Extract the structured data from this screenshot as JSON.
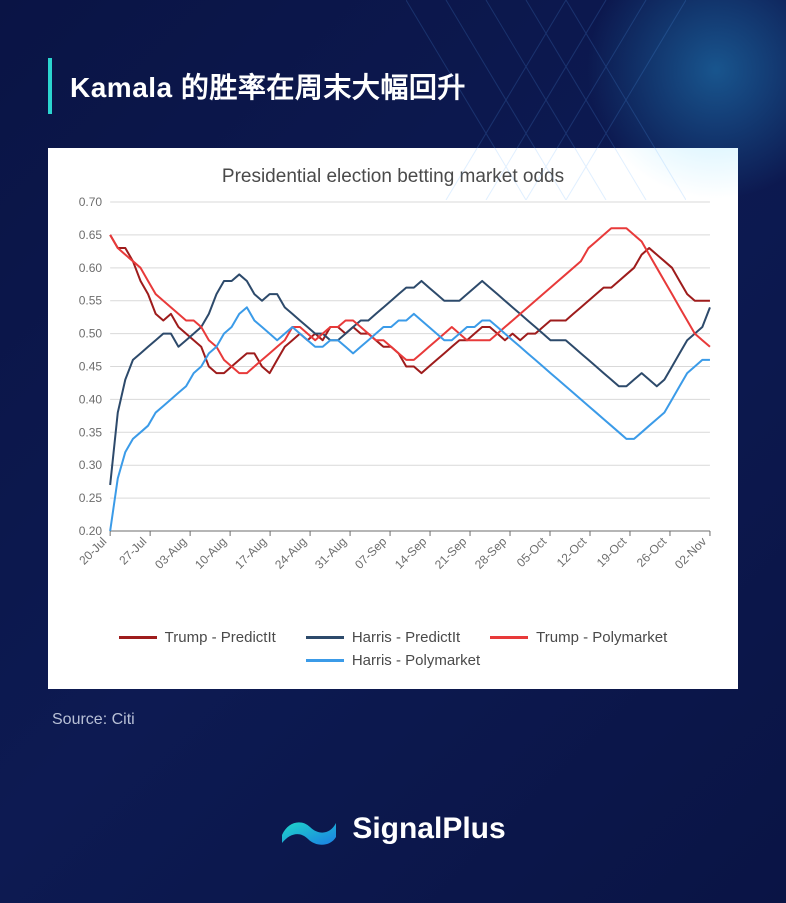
{
  "header": {
    "title": "Kamala 的胜率在周末大幅回升"
  },
  "source_label": "Source: Citi",
  "brand": {
    "name": "SignalPlus",
    "logo_gradient": [
      "#1fd6c8",
      "#1b7fe4"
    ]
  },
  "colors": {
    "page_bg": "#0a1445",
    "accent_bar": "#2bd4cf",
    "card_bg": "#ffffff",
    "text_dark": "#4a4a4a",
    "text_light": "#b8c0d6",
    "grid": "#d9d9d9",
    "axis": "#6d6d6d"
  },
  "chart": {
    "type": "line",
    "title": "Presidential election betting market odds",
    "title_fontsize": 19,
    "background_color": "#ffffff",
    "grid_color": "#d9d9d9",
    "axis_color": "#6d6d6d",
    "label_fontsize": 12,
    "line_width": 2,
    "ylim": [
      0.2,
      0.7
    ],
    "ytick_step": 0.05,
    "yticks": [
      0.2,
      0.25,
      0.3,
      0.35,
      0.4,
      0.45,
      0.5,
      0.55,
      0.6,
      0.65,
      0.7
    ],
    "x_labels": [
      "20-Jul",
      "27-Jul",
      "03-Aug",
      "10-Aug",
      "17-Aug",
      "24-Aug",
      "31-Aug",
      "07-Sep",
      "14-Sep",
      "21-Sep",
      "28-Sep",
      "05-Oct",
      "12-Oct",
      "19-Oct",
      "26-Oct",
      "02-Nov"
    ],
    "x_label_rotation": -45,
    "series": [
      {
        "name": "Trump - PredictIt",
        "color": "#9e1c1c",
        "values": [
          0.65,
          0.63,
          0.63,
          0.61,
          0.58,
          0.56,
          0.53,
          0.52,
          0.53,
          0.51,
          0.5,
          0.49,
          0.48,
          0.45,
          0.44,
          0.44,
          0.45,
          0.46,
          0.47,
          0.47,
          0.45,
          0.44,
          0.46,
          0.48,
          0.49,
          0.5,
          0.49,
          0.5,
          0.49,
          0.51,
          0.51,
          0.5,
          0.51,
          0.5,
          0.5,
          0.49,
          0.48,
          0.48,
          0.47,
          0.45,
          0.45,
          0.44,
          0.45,
          0.46,
          0.47,
          0.48,
          0.49,
          0.49,
          0.5,
          0.51,
          0.51,
          0.5,
          0.49,
          0.5,
          0.49,
          0.5,
          0.5,
          0.51,
          0.52,
          0.52,
          0.52,
          0.53,
          0.54,
          0.55,
          0.56,
          0.57,
          0.57,
          0.58,
          0.59,
          0.6,
          0.62,
          0.63,
          0.62,
          0.61,
          0.6,
          0.58,
          0.56,
          0.55,
          0.55,
          0.55
        ]
      },
      {
        "name": "Harris - PredictIt",
        "color": "#2d4a6b",
        "values": [
          0.27,
          0.38,
          0.43,
          0.46,
          0.47,
          0.48,
          0.49,
          0.5,
          0.5,
          0.48,
          0.49,
          0.5,
          0.51,
          0.53,
          0.56,
          0.58,
          0.58,
          0.59,
          0.58,
          0.56,
          0.55,
          0.56,
          0.56,
          0.54,
          0.53,
          0.52,
          0.51,
          0.5,
          0.5,
          0.49,
          0.49,
          0.5,
          0.51,
          0.52,
          0.52,
          0.53,
          0.54,
          0.55,
          0.56,
          0.57,
          0.57,
          0.58,
          0.57,
          0.56,
          0.55,
          0.55,
          0.55,
          0.56,
          0.57,
          0.58,
          0.57,
          0.56,
          0.55,
          0.54,
          0.53,
          0.52,
          0.51,
          0.5,
          0.49,
          0.49,
          0.49,
          0.48,
          0.47,
          0.46,
          0.45,
          0.44,
          0.43,
          0.42,
          0.42,
          0.43,
          0.44,
          0.43,
          0.42,
          0.43,
          0.45,
          0.47,
          0.49,
          0.5,
          0.51,
          0.54
        ]
      },
      {
        "name": "Trump - Polymarket",
        "color": "#e83a3a",
        "values": [
          0.65,
          0.63,
          0.62,
          0.61,
          0.6,
          0.58,
          0.56,
          0.55,
          0.54,
          0.53,
          0.52,
          0.52,
          0.51,
          0.49,
          0.48,
          0.46,
          0.45,
          0.44,
          0.44,
          0.45,
          0.46,
          0.47,
          0.48,
          0.49,
          0.51,
          0.51,
          0.5,
          0.49,
          0.5,
          0.51,
          0.51,
          0.52,
          0.52,
          0.51,
          0.5,
          0.49,
          0.49,
          0.48,
          0.47,
          0.46,
          0.46,
          0.47,
          0.48,
          0.49,
          0.5,
          0.51,
          0.5,
          0.49,
          0.49,
          0.49,
          0.49,
          0.5,
          0.51,
          0.52,
          0.53,
          0.54,
          0.55,
          0.56,
          0.57,
          0.58,
          0.59,
          0.6,
          0.61,
          0.63,
          0.64,
          0.65,
          0.66,
          0.66,
          0.66,
          0.65,
          0.64,
          0.62,
          0.6,
          0.58,
          0.56,
          0.54,
          0.52,
          0.5,
          0.49,
          0.48
        ]
      },
      {
        "name": "Harris - Polymarket",
        "color": "#3b9be8",
        "values": [
          0.2,
          0.28,
          0.32,
          0.34,
          0.35,
          0.36,
          0.38,
          0.39,
          0.4,
          0.41,
          0.42,
          0.44,
          0.45,
          0.47,
          0.48,
          0.5,
          0.51,
          0.53,
          0.54,
          0.52,
          0.51,
          0.5,
          0.49,
          0.5,
          0.51,
          0.5,
          0.49,
          0.48,
          0.48,
          0.49,
          0.49,
          0.48,
          0.47,
          0.48,
          0.49,
          0.5,
          0.51,
          0.51,
          0.52,
          0.52,
          0.53,
          0.52,
          0.51,
          0.5,
          0.49,
          0.49,
          0.5,
          0.51,
          0.51,
          0.52,
          0.52,
          0.51,
          0.5,
          0.49,
          0.48,
          0.47,
          0.46,
          0.45,
          0.44,
          0.43,
          0.42,
          0.41,
          0.4,
          0.39,
          0.38,
          0.37,
          0.36,
          0.35,
          0.34,
          0.34,
          0.35,
          0.36,
          0.37,
          0.38,
          0.4,
          0.42,
          0.44,
          0.45,
          0.46,
          0.46
        ]
      }
    ],
    "legend": {
      "position": "bottom",
      "items": [
        "Trump - PredictIt",
        "Harris - PredictIt",
        "Trump - Polymarket",
        "Harris - Polymarket"
      ]
    }
  }
}
